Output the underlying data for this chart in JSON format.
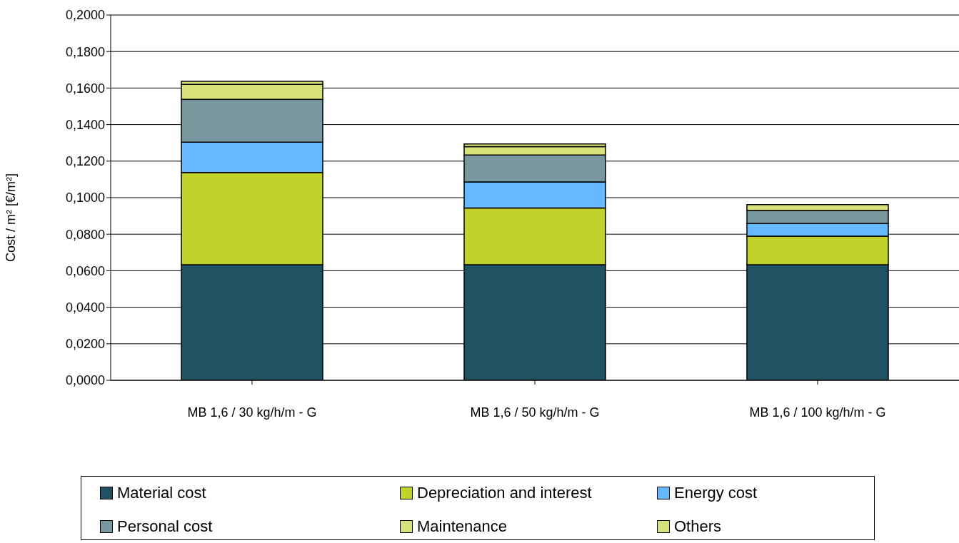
{
  "chart_data": {
    "type": "bar",
    "stacked": true,
    "ylabel": "Cost / m² [€/m²]",
    "categories": [
      "MB 1,6 / 30 kg/h/m - G",
      "MB 1,6 / 50 kg/h/m - G",
      "MB 1,6 / 100 kg/h/m - G"
    ],
    "series": [
      {
        "name": "Material cost",
        "color": "#1f5263",
        "values": [
          0.0633,
          0.0633,
          0.0633
        ]
      },
      {
        "name": "Depreciation and interest",
        "color": "#c1d22a",
        "values": [
          0.0505,
          0.031,
          0.0156
        ]
      },
      {
        "name": "Energy cost",
        "color": "#66b8ff",
        "values": [
          0.0166,
          0.0143,
          0.0069
        ]
      },
      {
        "name": "Personal cost",
        "color": "#78979f",
        "values": [
          0.0234,
          0.0147,
          0.0072
        ]
      },
      {
        "name": "Maintenance",
        "color": "#d8e27d",
        "values": [
          0.0082,
          0.0046,
          0.0032
        ]
      },
      {
        "name": "Others",
        "color": "#d8e27d",
        "values": [
          0.0017,
          0.0015,
          0
        ]
      }
    ],
    "ylim": [
      0,
      0.2
    ],
    "yticks": [
      {
        "value": 0,
        "label": "0,0000"
      },
      {
        "value": 0.02,
        "label": "0,0200"
      },
      {
        "value": 0.04,
        "label": "0,0400"
      },
      {
        "value": 0.06,
        "label": "0,0600"
      },
      {
        "value": 0.08,
        "label": "0,0800"
      },
      {
        "value": 0.1,
        "label": "0,1000"
      },
      {
        "value": 0.12,
        "label": "0,1200"
      },
      {
        "value": 0.14,
        "label": "0,1400"
      },
      {
        "value": 0.16,
        "label": "0,1600"
      },
      {
        "value": 0.18,
        "label": "0,1800"
      },
      {
        "value": 0.2,
        "label": "0,2000"
      }
    ],
    "grid": "y",
    "legend": "bottom"
  }
}
